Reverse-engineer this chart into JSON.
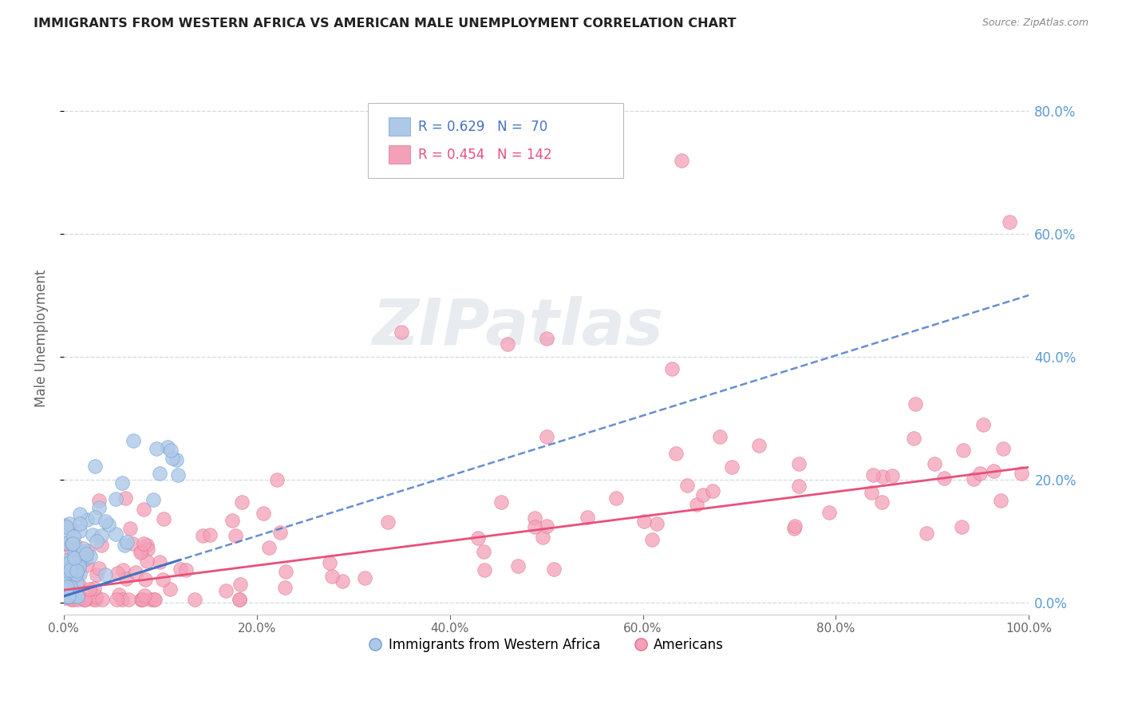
{
  "title": "IMMIGRANTS FROM WESTERN AFRICA VS AMERICAN MALE UNEMPLOYMENT CORRELATION CHART",
  "source": "Source: ZipAtlas.com",
  "ylabel": "Male Unemployment",
  "xlim": [
    0.0,
    1.0
  ],
  "ylim": [
    -0.02,
    0.88
  ],
  "yticks": [
    0.0,
    0.2,
    0.4,
    0.6,
    0.8
  ],
  "xticks": [
    0.0,
    0.2,
    0.4,
    0.6,
    0.8,
    1.0
  ],
  "blue_color": "#aec8e8",
  "blue_edge": "#6fa0d0",
  "blue_line_color": "#4472c4",
  "pink_color": "#f4a0b8",
  "pink_edge": "#e07090",
  "pink_line_color": "#e8507a",
  "tick_color": "#5b9bd5",
  "grid_color": "#d0d8e8",
  "background_color": "#ffffff",
  "watermark_text": "ZIPatlas",
  "blue_R": "0.629",
  "blue_N": "70",
  "pink_R": "0.454",
  "pink_N": "142",
  "legend_label_blue": "Immigrants from Western Africa",
  "legend_label_pink": "Americans",
  "blue_trend_x": [
    0.0,
    1.0
  ],
  "blue_trend_y": [
    0.01,
    0.5
  ],
  "pink_trend_x": [
    0.0,
    1.0
  ],
  "pink_trend_y": [
    0.02,
    0.22
  ]
}
